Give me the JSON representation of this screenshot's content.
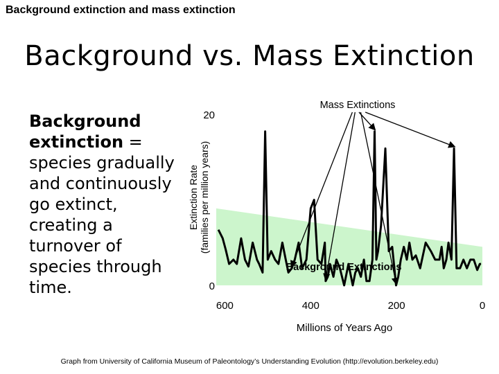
{
  "header": {
    "title": "Background extinction and mass extinction"
  },
  "slide": {
    "title": "Background vs. Mass Extinction",
    "body_bold": "Background extinction",
    "body_rest": " = species gradually and continuously go extinct, creating a turnover of species through time."
  },
  "footer": {
    "credit": "Graph from University of California Museum of Paleontology’s Understanding Evolution (http://evolution.berkeley.edu)"
  },
  "chart_data": {
    "type": "line",
    "xlabel": "Millions of Years Ago",
    "ylabel_line1": "Extinction Rate",
    "ylabel_line2": "(families per million years)",
    "xlim": [
      620,
      0
    ],
    "ylim": [
      0,
      20
    ],
    "x_ticks": [
      "600",
      "400",
      "200",
      "0"
    ],
    "x_tick_values": [
      600,
      400,
      200,
      0
    ],
    "y_ticks": [
      "20",
      "0"
    ],
    "y_tick_values": [
      20,
      0
    ],
    "background_band": {
      "label": "Background Extinctions",
      "color": "#ccf5cc",
      "upper_start": 9.0,
      "upper_end": 4.5
    },
    "mass_label": "Mass Extinctions",
    "mass_extinction_x": [
      444,
      365,
      251,
      201,
      66
    ],
    "series": [
      {
        "color": "#000000",
        "x": [
          615,
          605,
          598,
          590,
          580,
          572,
          562,
          553,
          545,
          535,
          525,
          520,
          512,
          506,
          500,
          492,
          483,
          475,
          466,
          458,
          452,
          444,
          437,
          428,
          420,
          410,
          400,
          392,
          384,
          375,
          367,
          365,
          360,
          355,
          347,
          340,
          332,
          322,
          312,
          302,
          296,
          290,
          283,
          276,
          270,
          263,
          256,
          251,
          247,
          243,
          236,
          226,
          218,
          210,
          201,
          196,
          190,
          183,
          176,
          170,
          163,
          155,
          145,
          132,
          120,
          110,
          100,
          95,
          90,
          84,
          79,
          72,
          66,
          60,
          52,
          44,
          36,
          28,
          20,
          12,
          6,
          3
        ],
        "y": [
          6.5,
          5.5,
          4.2,
          2.5,
          3,
          2.5,
          5.5,
          3,
          2.2,
          5,
          3,
          2.5,
          1.5,
          18,
          3,
          4,
          3,
          2.5,
          5,
          3,
          1.5,
          2,
          3,
          5,
          2,
          3,
          9,
          10,
          3,
          2.5,
          5,
          0.5,
          1,
          2.5,
          1,
          3,
          2,
          0,
          2.5,
          0,
          1.5,
          2,
          1,
          3,
          0.5,
          0.5,
          3,
          18,
          3,
          4,
          7,
          16,
          4,
          4.5,
          0,
          1,
          3,
          4.5,
          3,
          5,
          3,
          3.5,
          2,
          5,
          4,
          3,
          3,
          4.5,
          2,
          3,
          5,
          3,
          16,
          2,
          2,
          3,
          2,
          3,
          3,
          1.8,
          2.5,
          2.5
        ]
      }
    ]
  }
}
